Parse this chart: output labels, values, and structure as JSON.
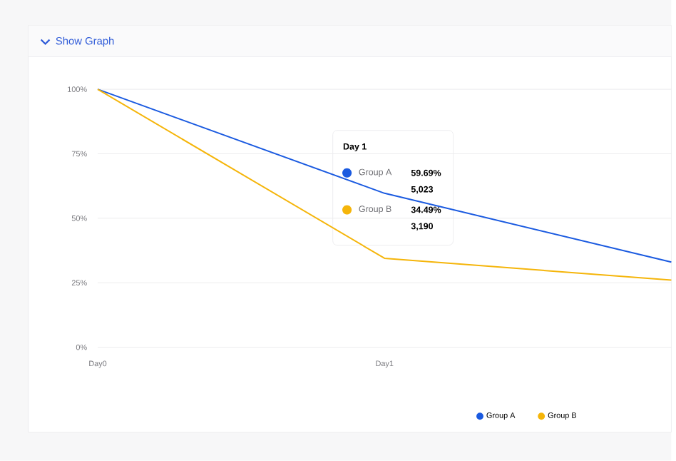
{
  "chart_data": {
    "type": "line",
    "title": "Show Graph",
    "categories": [
      "Day0",
      "Day1",
      null
    ],
    "series": [
      {
        "name": "Group A",
        "color": "#1a5ae0",
        "values": [
          100,
          59.69,
          33
        ]
      },
      {
        "name": "Group B",
        "color": "#f5b50a",
        "values": [
          100,
          34.49,
          26
        ]
      }
    ],
    "ylim": [
      0,
      100
    ],
    "yticks": [
      {
        "value": 0,
        "label": "0%"
      },
      {
        "value": 25,
        "label": "25%"
      },
      {
        "value": 50,
        "label": "50%"
      },
      {
        "value": 75,
        "label": "75%"
      },
      {
        "value": 100,
        "label": "100%"
      }
    ],
    "grid": "y",
    "legend": "bottom",
    "marker": "none",
    "annotations": [
      "Day 1",
      "Group A",
      "59.69%",
      "5,023",
      "Group B",
      "34.49%",
      "3,190"
    ]
  }
}
